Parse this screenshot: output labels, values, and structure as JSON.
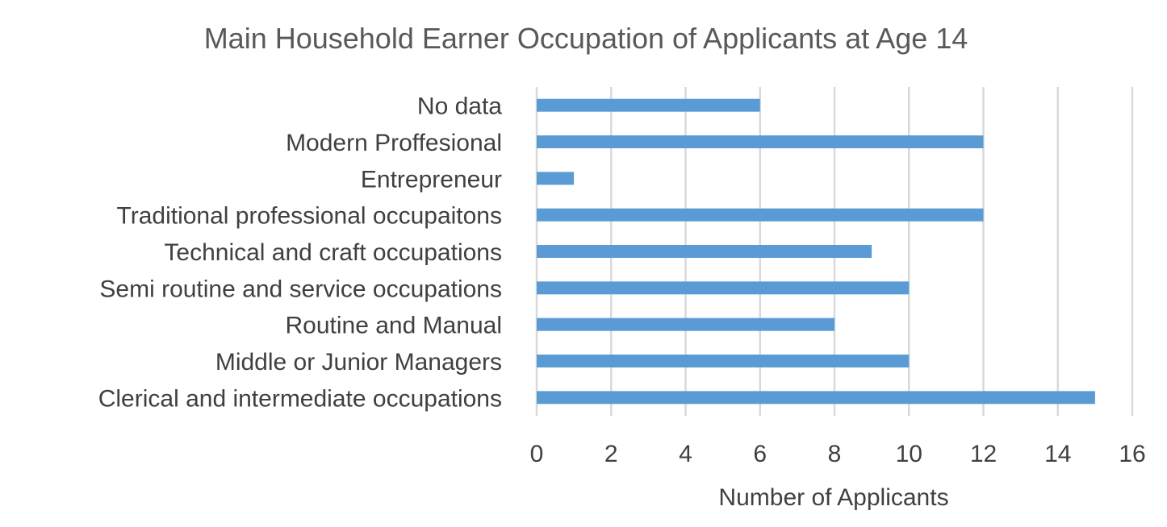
{
  "chart_data": {
    "type": "bar",
    "orientation": "horizontal",
    "title": "Main Household Earner Occupation of Applicants at Age 14",
    "xlabel": "Number of Applicants",
    "ylabel": "",
    "xlim": [
      0,
      16
    ],
    "xticks": [
      0,
      2,
      4,
      6,
      8,
      10,
      12,
      14,
      16
    ],
    "categories": [
      "No data",
      "Modern Proffesional",
      "Entrepreneur",
      "Traditional professional occupaitons",
      "Technical and craft occupations",
      "Semi routine and service occupations",
      "Routine  and Manual",
      "Middle or Junior Managers",
      "Clerical and intermediate occupations"
    ],
    "values": [
      6,
      12,
      1,
      12,
      9,
      10,
      8,
      10,
      15
    ],
    "grid": true,
    "legend": "none",
    "bar_color": "#5b9bd5",
    "grid_color": "#d9d9d9",
    "text_color": "#404040",
    "title_color": "#595959"
  }
}
